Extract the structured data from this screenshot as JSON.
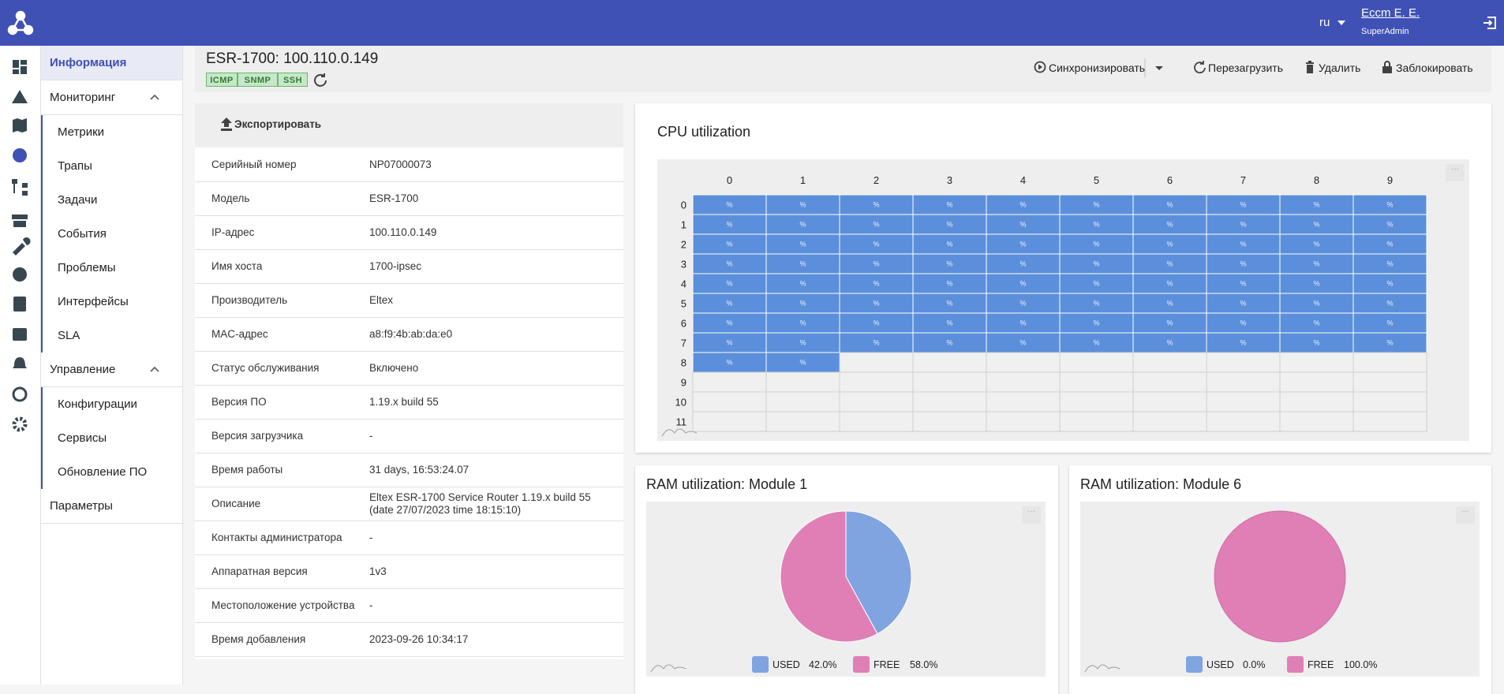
{
  "header": {
    "language": "ru",
    "user_name": "Eccm E. E.",
    "user_role": "SuperAdmin"
  },
  "sidebar": {
    "items": [
      {
        "label": "Информация"
      },
      {
        "label": "Мониторинг",
        "children": [
          "Метрики",
          "Трапы",
          "Задачи",
          "События",
          "Проблемы",
          "Интерфейсы",
          "SLA"
        ]
      },
      {
        "label": "Управление",
        "children": [
          "Конфигурации",
          "Сервисы",
          "Обновление ПО"
        ]
      },
      {
        "label": "Параметры"
      }
    ]
  },
  "device": {
    "title": "ESR-1700: 100.110.0.149",
    "protocols": [
      "ICMP",
      "SNMP",
      "SSH"
    ],
    "actions": [
      "Синхронизировать",
      "Перезагрузить",
      "Удалить",
      "Заблокировать"
    ]
  },
  "info": {
    "export": "Экспортировать",
    "rows": [
      {
        "label": "Серийный номер",
        "value": "NP07000073"
      },
      {
        "label": "Модель",
        "value": "ESR-1700"
      },
      {
        "label": "IP-адрес",
        "value": "100.110.0.149"
      },
      {
        "label": "Имя хоста",
        "value": "1700-ipsec"
      },
      {
        "label": "Производитель",
        "value": "Eltex"
      },
      {
        "label": "MAC-адрес",
        "value": "a8:f9:4b:ab:da:e0"
      },
      {
        "label": "Статус обслуживания",
        "value": "Включено"
      },
      {
        "label": "Версия ПО",
        "value": "1.19.x build 55"
      },
      {
        "label": "Версия загрузчика",
        "value": "-"
      },
      {
        "label": "Время работы",
        "value": "31 days, 16:53:24.07"
      },
      {
        "label": "Описание",
        "value": "Eltex ESR-1700 Service Router 1.19.x build 55 (date 27/07/2023 time 18:15:10)"
      },
      {
        "label": "Контакты администратора",
        "value": "-"
      },
      {
        "label": "Аппаратная версия",
        "value": "1v3"
      },
      {
        "label": "Местоположение устройства",
        "value": "-"
      },
      {
        "label": "Время добавления",
        "value": "2023-09-26 10:34:17"
      }
    ]
  },
  "chart_data": [
    {
      "type": "heatmap",
      "title": "CPU utilization",
      "color": "#5b8fdb",
      "columns": [
        0,
        1,
        2,
        3,
        4,
        5,
        6,
        7,
        8,
        9
      ],
      "rows": [
        0,
        1,
        2,
        3,
        4,
        5,
        6,
        7,
        8,
        9,
        10,
        11
      ],
      "cell_labels": [
        [
          "%",
          "%",
          "%",
          "%",
          "%",
          "%",
          "%",
          "%",
          "%",
          "%"
        ],
        [
          "%",
          "%",
          "%",
          "%",
          "%",
          "%",
          "%",
          "%",
          "%",
          "%"
        ],
        [
          "%",
          "%",
          "%",
          "%",
          "%",
          "%",
          "%",
          "%",
          "%",
          "%"
        ],
        [
          "%",
          "%",
          "%",
          "%",
          "%",
          "%",
          "%",
          "%",
          "%",
          "%"
        ],
        [
          "%",
          "%",
          "%",
          "%",
          "%",
          "%",
          "%",
          "%",
          "%",
          "%"
        ],
        [
          "%",
          "%",
          "%",
          "%",
          "%",
          "%",
          "%",
          "%",
          "%",
          "%"
        ],
        [
          "%",
          "%",
          "%",
          "%",
          "%",
          "%",
          "%",
          "%",
          "%",
          "%"
        ],
        [
          "%",
          "%",
          "%",
          "%",
          "%",
          "%",
          "%",
          "%",
          "%",
          "%"
        ],
        [
          "%",
          "%",
          null,
          null,
          null,
          null,
          null,
          null,
          null,
          null
        ],
        [
          null,
          null,
          null,
          null,
          null,
          null,
          null,
          null,
          null,
          null
        ],
        [
          null,
          null,
          null,
          null,
          null,
          null,
          null,
          null,
          null,
          null
        ],
        [
          null,
          null,
          null,
          null,
          null,
          null,
          null,
          null,
          null,
          null
        ]
      ]
    },
    {
      "type": "pie",
      "title": "RAM utilization: Module 1",
      "categories": [
        "USED",
        "FREE"
      ],
      "values": [
        42,
        58
      ],
      "value_labels": [
        "42.0%",
        "58.0%"
      ],
      "colors": [
        "#7fa4e0",
        "#e07fb6"
      ]
    },
    {
      "type": "pie",
      "title": "RAM utilization: Module 6",
      "categories": [
        "USED",
        "FREE"
      ],
      "values": [
        0,
        100
      ],
      "value_labels": [
        "0.0%",
        "100.0%"
      ],
      "colors": [
        "#7fa4e0",
        "#e07fb6"
      ]
    }
  ]
}
